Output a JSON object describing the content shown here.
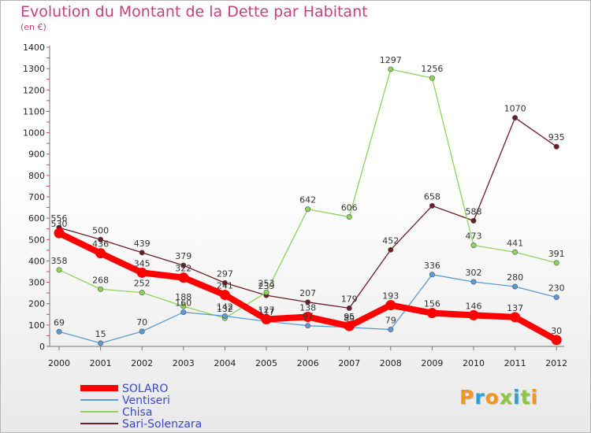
{
  "title": "Evolution du Montant de la Dette par Habitant",
  "unit": "(en €)",
  "logo": {
    "text": "Proxiti",
    "letter_colors": [
      "#f7941d",
      "#2b9fd8",
      "#f7941d",
      "#8dc63f",
      "#2b9fd8",
      "#8dc63f",
      "#f7941d"
    ]
  },
  "chart_data": {
    "type": "line",
    "title": "Evolution du Montant de la Dette par Habitant",
    "ylabel": "(en €)",
    "xlabel": "",
    "ylim": [
      0,
      1400
    ],
    "yticks": [
      0,
      100,
      200,
      300,
      400,
      500,
      600,
      700,
      800,
      900,
      1000,
      1100,
      1200,
      1300,
      1400
    ],
    "categories": [
      "2000",
      "2001",
      "2002",
      "2003",
      "2004",
      "2005",
      "2006",
      "2007",
      "2008",
      "2009",
      "2010",
      "2011",
      "2012"
    ],
    "grid": false,
    "legend_position": "bottom-left",
    "series": [
      {
        "name": "SOLARO",
        "color": "#ff0000",
        "values": [
          530,
          436,
          345,
          322,
          241,
          127,
          138,
          95,
          193,
          156,
          146,
          137,
          30
        ]
      },
      {
        "name": "Ventiseri",
        "color": "#5b9bd5",
        "values": [
          69,
          15,
          70,
          160,
          142,
          117,
          97,
          89,
          79,
          336,
          302,
          280,
          230
        ]
      },
      {
        "name": "Chisa",
        "color": "#8ed45c",
        "values": [
          358,
          268,
          252,
          188,
          132,
          253,
          642,
          606,
          1297,
          1256,
          473,
          441,
          391
        ]
      },
      {
        "name": "Sari-Solenzara",
        "color": "#6b1f24",
        "values": [
          556,
          500,
          439,
          379,
          297,
          239,
          207,
          179,
          452,
          658,
          588,
          1070,
          935
        ]
      }
    ]
  }
}
